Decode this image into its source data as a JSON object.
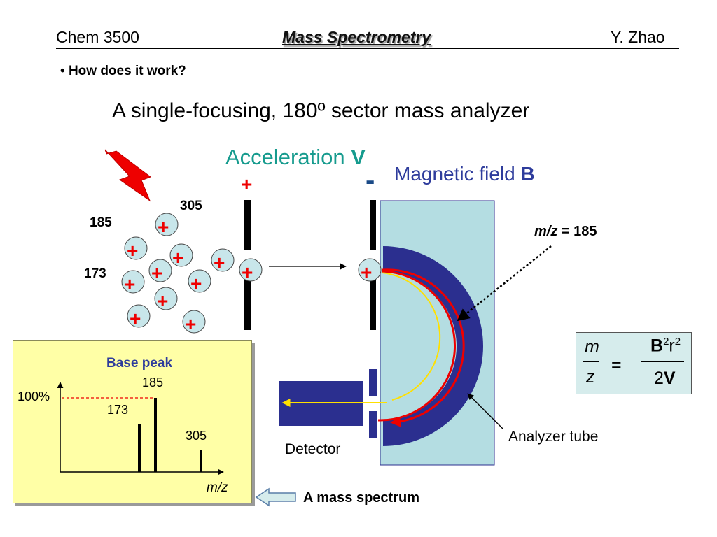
{
  "header": {
    "course": "Chem 3500",
    "title": "Mass Spectrometry",
    "author": "Y. Zhao"
  },
  "bullet": "How does it work?",
  "heading": "A single-focusing, 180º sector mass analyzer",
  "acceleration": {
    "label": "Acceleration ",
    "symbol": "V",
    "plus": "+",
    "minus": "-"
  },
  "magnetic": {
    "label": "Magnetic field ",
    "symbol": "B"
  },
  "ion_labels": {
    "a": "305",
    "b": "185",
    "c": "173"
  },
  "ion_sign": "+",
  "mz_note": {
    "var": "m/z",
    "rest": " = 185"
  },
  "formula": {
    "m": "m",
    "z": "z",
    "eq": "=",
    "B": "B",
    "sq1": "2",
    "r": "r",
    "sq2": "2",
    "two": "2",
    "V": "V"
  },
  "analyzer_tube": "Analyzer tube",
  "detector": "Detector",
  "mass_spectrum": "A mass spectrum",
  "spectrum": {
    "base_peak": "Base peak",
    "y_label": "100%",
    "x_label": "m/z",
    "peaks": [
      {
        "label": "173",
        "value": 65
      },
      {
        "label": "185",
        "value": 100
      },
      {
        "label": "305",
        "value": 30
      }
    ]
  },
  "colors": {
    "field": "#b4dde2",
    "magnet": "#2b2f8f",
    "ion_fill": "#c8e6ea",
    "ion_sign": "#ee0000",
    "accent_teal": "#169b8e",
    "accent_blue": "#2e3c9c"
  }
}
